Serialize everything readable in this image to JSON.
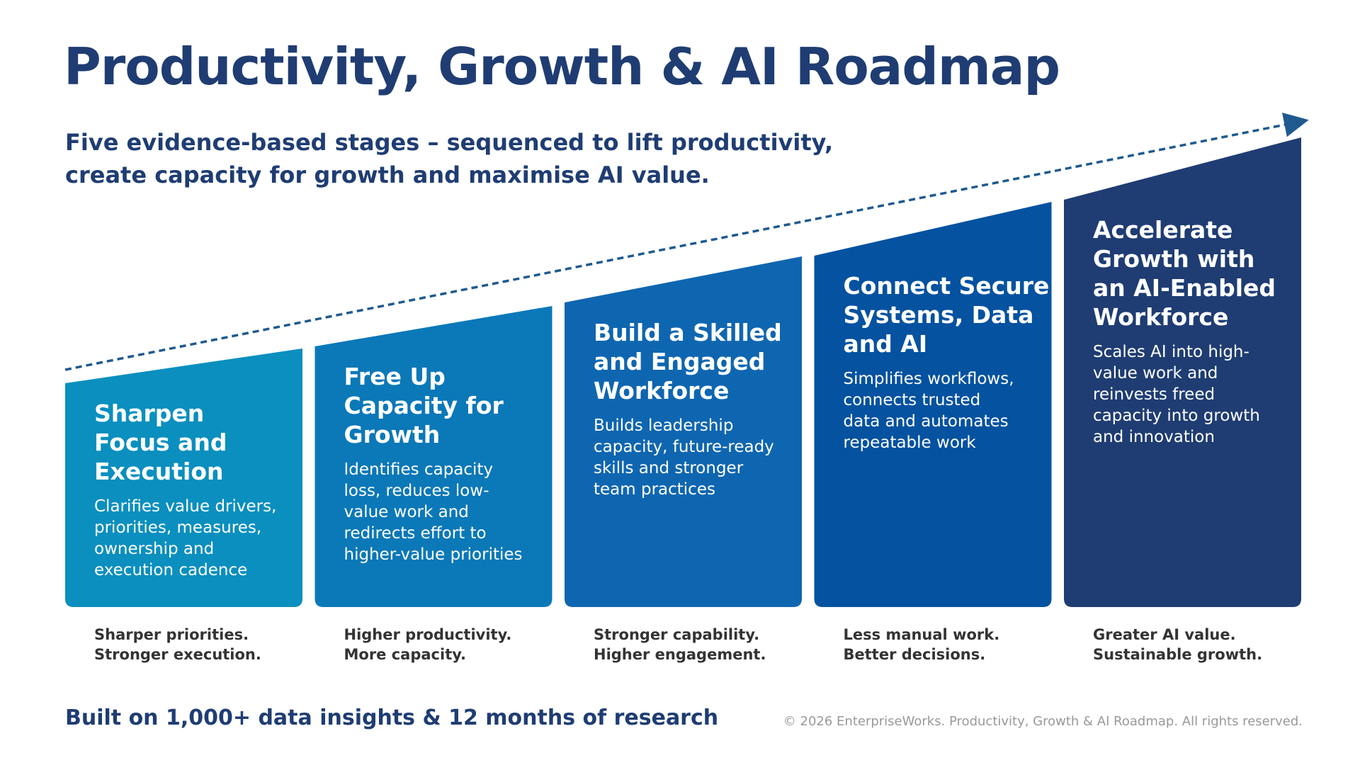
{
  "header": {
    "title": "Productivity, Growth & AI Roadmap",
    "subtitle_lines": [
      "Five evidence-based stages – sequenced to lift productivity,",
      "create capacity for growth and maximise AI value."
    ]
  },
  "stages": [
    {
      "title_lines": [
        "Sharpen",
        "Focus and",
        "Execution"
      ],
      "description_lines": [
        "Clarifies value drivers,",
        "priorities, measures,",
        "ownership and",
        "execution cadence"
      ],
      "outcomes": [
        "Sharper priorities.",
        "Stronger execution."
      ]
    },
    {
      "title_lines": [
        "Free Up",
        "Capacity for",
        "Growth"
      ],
      "description_lines": [
        "Identifies capacity",
        "loss, reduces low-",
        "value work and",
        "redirects effort to",
        "higher-value priorities"
      ],
      "outcomes": [
        "Higher productivity.",
        "More capacity."
      ]
    },
    {
      "title_lines": [
        "Build a Skilled",
        "and Engaged",
        "Workforce"
      ],
      "description_lines": [
        "Builds leadership",
        "capacity, future-ready",
        "skills and stronger",
        "team practices"
      ],
      "outcomes": [
        "Stronger capability.",
        "Higher engagement."
      ]
    },
    {
      "title_lines": [
        "Connect Secure",
        "Systems, Data",
        "and AI"
      ],
      "description_lines": [
        "Simplifies workflows,",
        "connects trusted",
        "data and automates",
        "repeatable work"
      ],
      "outcomes": [
        "Less manual work.",
        "Better decisions."
      ]
    },
    {
      "title_lines": [
        "Accelerate",
        "Growth with",
        "an AI-Enabled",
        "Workforce"
      ],
      "description_lines": [
        "Scales AI into high-",
        "value work and",
        "reinvests freed",
        "capacity into growth",
        "and innovation"
      ],
      "outcomes": [
        "Greater AI value.",
        "Sustainable growth."
      ]
    }
  ],
  "footer": {
    "note": "Built on 1,000+ data insights & 12 months of research",
    "copyright": "© 2026 EnterpriseWorks. Productivity, Growth & AI Roadmap. All rights reserved."
  }
}
